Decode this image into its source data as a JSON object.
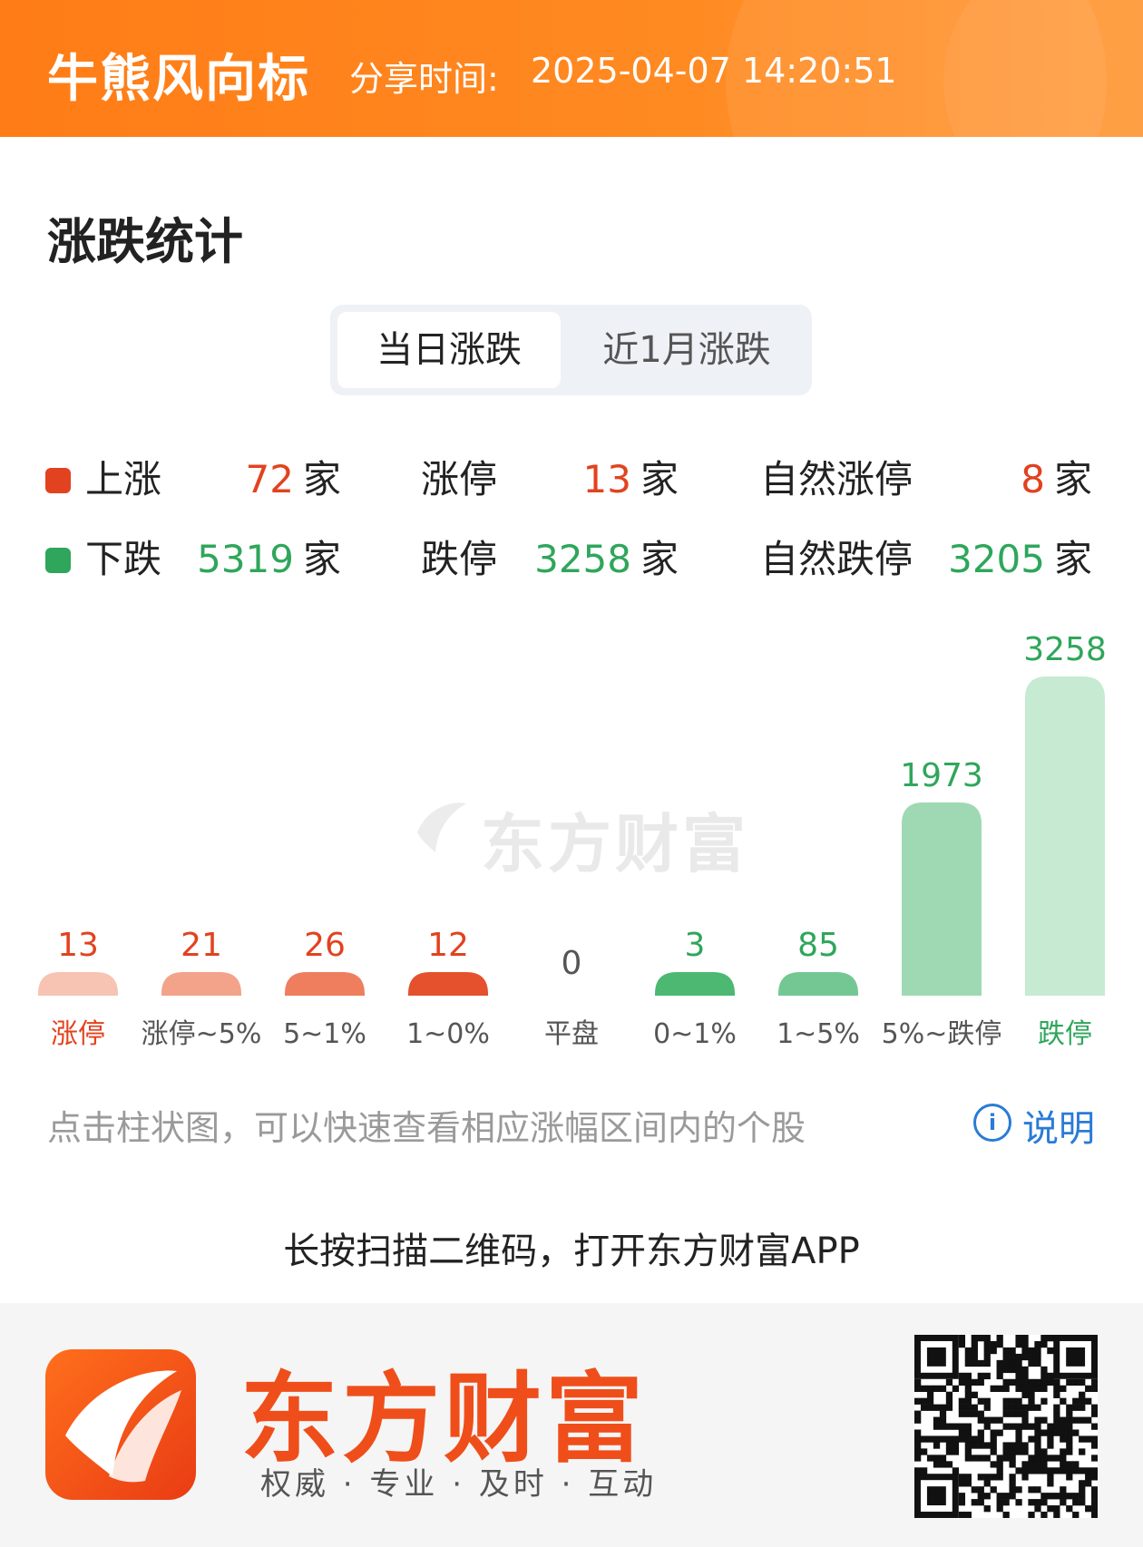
{
  "header": {
    "title": "牛熊风向标",
    "share_label": "分享时间:",
    "share_time": "2025-04-07 14:20:51"
  },
  "section": {
    "title": "涨跌统计"
  },
  "tabs": [
    {
      "label": "当日涨跌",
      "active": true
    },
    {
      "label": "近1月涨跌",
      "active": false
    }
  ],
  "summary": {
    "unit": "家",
    "up": {
      "label": "上涨",
      "value": "72",
      "color": "#e2421f"
    },
    "down": {
      "label": "下跌",
      "value": "5319",
      "color": "#2fa65b"
    },
    "limit_up": {
      "label": "涨停",
      "value": "13"
    },
    "limit_down": {
      "label": "跌停",
      "value": "3258"
    },
    "natural_limit_up": {
      "label": "自然涨停",
      "value": "8"
    },
    "natural_limit_down": {
      "label": "自然跌停",
      "value": "3205"
    }
  },
  "chart_data": {
    "type": "bar",
    "categories": [
      "涨停",
      "涨停~5%",
      "5~1%",
      "1~0%",
      "平盘",
      "0~1%",
      "1~5%",
      "5%~跌停",
      "跌停"
    ],
    "values": [
      13,
      21,
      26,
      12,
      0,
      3,
      85,
      1973,
      3258
    ],
    "bar_colors": [
      "#f7c3b2",
      "#f2a38a",
      "#ee7e5e",
      "#e4512c",
      "#cccccc",
      "#4cb872",
      "#74c793",
      "#9fd9b4",
      "#c6ead2"
    ],
    "label_colors": [
      "#e2421f",
      "#e2421f",
      "#e2421f",
      "#e2421f",
      "#555555",
      "#2fa65b",
      "#2fa65b",
      "#2fa65b",
      "#2fa65b"
    ],
    "category_colors": [
      "#e2421f",
      "#555555",
      "#555555",
      "#555555",
      "#555555",
      "#555555",
      "#555555",
      "#555555",
      "#2fa65b"
    ],
    "ylim": [
      0,
      3258
    ]
  },
  "watermark": "东方财富",
  "hint": "点击柱状图，可以快速查看相应涨幅区间内的个股",
  "info": {
    "icon": "info-icon",
    "label": "说明"
  },
  "scan_text": "长按扫描二维码，打开东方财富APP",
  "footer": {
    "brand": "东方财富",
    "slogan": "权威 · 专业 · 及时 · 互动",
    "qr_icon": "qr-code-icon"
  }
}
